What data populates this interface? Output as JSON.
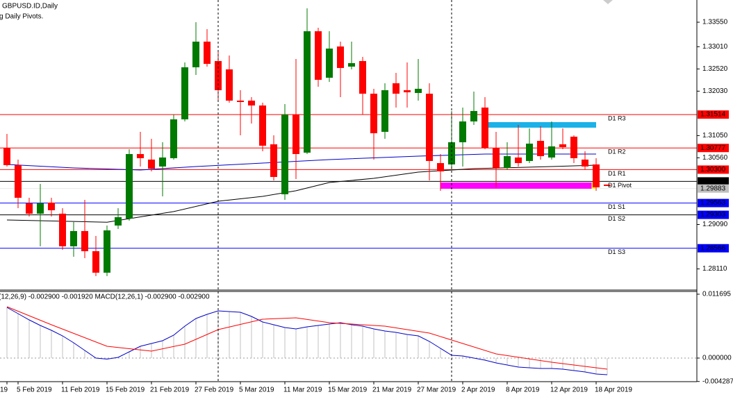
{
  "chart_data": {
    "type": "candlestick",
    "title": "GBPUSD.ID,Daily",
    "subtitle": "g Daily Pivots.",
    "bull_color": "#007a00",
    "bear_color": "#ff0000",
    "ylim": [
      1.27644,
      1.3404
    ],
    "yticks": [
      {
        "value": 1.3355,
        "label": "1.33550"
      },
      {
        "value": 1.3301,
        "label": "1.33010"
      },
      {
        "value": 1.3252,
        "label": "1.32520"
      },
      {
        "value": 1.3203,
        "label": "1.32030"
      },
      {
        "value": 1.3105,
        "label": "1.31050"
      },
      {
        "value": 1.3056,
        "label": "1.30560"
      },
      {
        "value": 1.2909,
        "label": "1.29090"
      },
      {
        "value": 1.2811,
        "label": "1.28110"
      }
    ],
    "categories": [
      "19",
      "5 Feb 2019",
      null,
      null,
      null,
      "11 Feb 2019",
      null,
      null,
      null,
      "15 Feb 2019",
      null,
      null,
      null,
      "21 Feb 2019",
      null,
      null,
      null,
      "27 Feb 2019",
      null,
      null,
      null,
      "5 Mar 2019",
      null,
      null,
      null,
      "11 Mar 2019",
      null,
      null,
      null,
      "15 Mar 2019",
      null,
      null,
      null,
      "21 Mar 2019",
      null,
      null,
      null,
      "27 Mar 2019",
      null,
      null,
      null,
      "2 Apr 2019",
      null,
      null,
      null,
      "8 Apr 2019",
      null,
      null,
      null,
      "12 Apr 2019",
      null,
      null,
      null,
      "18 Apr 2019",
      null
    ],
    "open": [
      1.30781,
      1.30399,
      1.29557,
      1.29328,
      1.29572,
      1.29328,
      1.28608,
      1.28945,
      1.28501,
      1.28027,
      1.29067,
      1.2922,
      1.30643,
      1.30521,
      1.30368,
      1.30552,
      1.31408,
      1.32556,
      1.33122,
      1.32694,
      1.3251,
      1.31821,
      1.31821,
      1.31714,
      1.30858,
      1.29756,
      1.31515,
      1.30674,
      1.33351,
      1.32326,
      1.33015,
      1.32571,
      1.32694,
      1.31974,
      1.31133,
      1.32204,
      1.32051,
      1.3199,
      1.31974,
      1.30444,
      1.30414,
      1.30903,
      1.31362,
      1.31668,
      1.30781,
      1.30337,
      1.30567,
      1.3049,
      1.30934,
      1.30567,
      1.30858,
      1.31026,
      1.30521,
      1.30414,
      1.2997
    ],
    "high": [
      1.31087,
      1.30521,
      1.29679,
      1.29985,
      1.29679,
      1.2945,
      1.29144,
      1.29634,
      1.28838,
      1.29067,
      1.2945,
      1.3075,
      1.31133,
      1.3098,
      1.30903,
      1.31515,
      1.32663,
      1.3355,
      1.33397,
      1.32892,
      1.32816,
      1.32051,
      1.31898,
      1.31776,
      1.31056,
      1.31745,
      1.32739,
      1.33856,
      1.33428,
      1.33351,
      1.33122,
      1.33122,
      1.32785,
      1.32082,
      1.32204,
      1.32433,
      1.32663,
      1.32739,
      1.32204,
      1.30643,
      1.31592,
      1.31668,
      1.3202,
      1.31898,
      1.31133,
      1.30903,
      1.31286,
      1.3121,
      1.31255,
      1.31362,
      1.3121,
      1.31056,
      1.30705,
      1.30552,
      1.2997
    ],
    "low": [
      1.30368,
      1.2945,
      1.29266,
      1.28608,
      1.29266,
      1.28532,
      1.28379,
      1.28348,
      1.27951,
      1.27951,
      1.28991,
      1.29175,
      1.30368,
      1.30261,
      1.2971,
      1.30521,
      1.31362,
      1.32388,
      1.32571,
      1.31821,
      1.31776,
      1.31056,
      1.31317,
      1.30705,
      1.30062,
      1.29634,
      1.30093,
      1.30643,
      1.32127,
      1.32235,
      1.31898,
      1.3251,
      1.31515,
      1.30521,
      1.3098,
      1.31668,
      1.31668,
      1.31821,
      1.30062,
      1.29832,
      1.30291,
      1.30368,
      1.31286,
      1.3075,
      1.29909,
      1.30291,
      1.30368,
      1.30444,
      1.30521,
      1.30521,
      1.3075,
      1.30444,
      1.30307,
      1.29832,
      1.2994
    ],
    "close": [
      1.30399,
      1.29679,
      1.29328,
      1.29557,
      1.29404,
      1.28608,
      1.28945,
      1.28501,
      1.28027,
      1.2896,
      1.29251,
      1.30643,
      1.30552,
      1.30322,
      1.30567,
      1.31408,
      1.32556,
      1.33122,
      1.32632,
      1.32051,
      1.31821,
      1.31791,
      1.31714,
      1.30827,
      1.30138,
      1.31515,
      1.30643,
      1.33351,
      1.3228,
      1.32969,
      1.32541,
      1.32648,
      1.31974,
      1.31102,
      1.32051,
      1.31974,
      1.32005,
      1.32082,
      1.3049,
      1.30261,
      1.30903,
      1.31362,
      1.31592,
      1.30781,
      1.30337,
      1.30597,
      1.30444,
      1.30873,
      1.30597,
      1.30812,
      1.30796,
      1.30552,
      1.30368,
      1.29909,
      1.2994
    ],
    "moving_averages": [
      {
        "color": "#000000",
        "x": [
          0,
          9,
          15,
          19,
          23,
          26,
          29,
          33,
          37,
          42,
          49,
          53
        ],
        "values": [
          1.2919,
          1.2914,
          1.29374,
          1.29603,
          1.2971,
          1.29833,
          1.30016,
          1.30108,
          1.30246,
          1.30322,
          1.30368,
          1.30399
        ]
      },
      {
        "color": "#0000c8",
        "x": [
          0,
          6,
          12,
          17,
          23,
          29,
          37,
          43,
          53
        ],
        "values": [
          1.30414,
          1.30337,
          1.30291,
          1.30368,
          1.30444,
          1.30521,
          1.30597,
          1.30643,
          1.30643
        ]
      }
    ],
    "levels": [
      {
        "name": "D1 R3",
        "value": 1.31514,
        "label": "1.31514",
        "color": "#ff0000",
        "box": "#ff0000"
      },
      {
        "name": "D1 R2",
        "value": 1.30777,
        "label": "1.30777",
        "color": "#ff0000",
        "box": "#ff0000"
      },
      {
        "name": "D1 R1",
        "value": 1.303,
        "label": "1.30300",
        "color": "#ff0000",
        "box": "#ff0000"
      },
      {
        "name": "D1 Pivot",
        "value": 1.3004,
        "label": "1.30040",
        "color": "#000000",
        "box": "#000000"
      },
      {
        "name": "D1 S1",
        "value": 1.29563,
        "label": "1.29563",
        "color": "#0000ff",
        "box": "#0000ff"
      },
      {
        "name": "D1 S2",
        "value": 1.29303,
        "label": "1.29303",
        "color": "#000000",
        "box": "#0000ff"
      },
      {
        "name": "D1 S3",
        "value": 1.28566,
        "label": "1.28566",
        "color": "#0000ff",
        "box": "#0000ff"
      }
    ],
    "last_price": {
      "value": 1.29883,
      "label": "1.29883",
      "color": "#c0c0c0"
    },
    "rectangles": [
      {
        "color": "#1ab2e8",
        "x": [
          43,
          53
        ],
        "y": [
          1.31347,
          1.31225
        ]
      },
      {
        "color": "#ff00ff",
        "x": [
          39,
          52.6
        ],
        "y": [
          1.30016,
          1.29878
        ]
      },
      {
        "color": "#ffff00",
        "x": [
          52.6,
          53
        ],
        "y": [
          1.30016,
          1.29878
        ]
      }
    ],
    "macd": {
      "label": "(12,26,9) -0.002900 -0.001920 MACD(12,26,1) -0.002900 -0.002900",
      "ylim": [
        -0.00432,
        0.0122
      ],
      "yticks": [
        0.011695,
        {
          "value": 0,
          "label": "0.000000"
        },
        -0.004287
      ],
      "histogram_color": "#c0c0c0",
      "main": {
        "color": "#0000c8",
        "values": [
          0.00928,
          0.00813,
          0.00699,
          0.00597,
          0.00508,
          0.00407,
          0.0028,
          0.0014,
          0,
          -0.00019,
          0.00013,
          0.00114,
          0.00216,
          0.00267,
          0.00318,
          0.00419,
          0.00585,
          0.00724,
          0.00801,
          0.00864,
          0.00852,
          0.00839,
          0.00763,
          0.00661,
          0.0061,
          0.00559,
          0.00534,
          0.00572,
          0.00597,
          0.00623,
          0.00648,
          0.0061,
          0.00585,
          0.00534,
          0.00496,
          0.0047,
          0.00432,
          0.00407,
          0.00305,
          0.00178,
          0.00051,
          0.00038,
          0,
          -0.00038,
          -0.00089,
          -0.00127,
          -0.00165,
          -0.00178,
          -0.00191,
          -0.00191,
          -0.00203,
          -0.00229,
          -0.00254,
          -0.00292,
          -0.00305
        ]
      },
      "signal": {
        "color": "#ff0000",
        "x": [
          0,
          4,
          9,
          13,
          16,
          19,
          23,
          26,
          29,
          34,
          38,
          40,
          44,
          49,
          54
        ],
        "values": [
          0.00941,
          0.0061,
          0.00216,
          0.00127,
          0.00254,
          0.00521,
          0.00712,
          0.00737,
          0.00648,
          0.00585,
          0.00458,
          0.0033,
          0.00076,
          -0.00076,
          -0.00203
        ]
      }
    }
  }
}
